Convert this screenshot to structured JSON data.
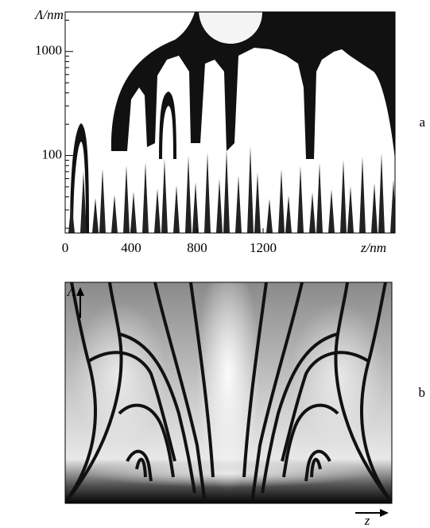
{
  "chart_data": [
    {
      "type": "map",
      "panel_label": "a",
      "xlabel": "z/nm",
      "ylabel": "Λ/nm",
      "xlim": [
        0,
        2000
      ],
      "xticks": [
        0,
        400,
        800,
        1200
      ],
      "ylim": [
        18,
        2400
      ],
      "yticks": [
        100,
        1000
      ],
      "y_log": true
    },
    {
      "type": "map",
      "panel_label": "b",
      "xlabel": "z",
      "ylabel": "Λ"
    }
  ]
}
